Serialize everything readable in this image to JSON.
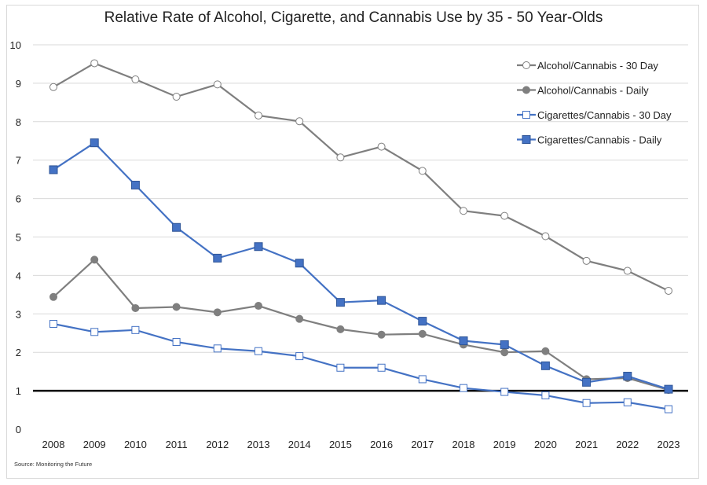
{
  "chart_data": {
    "type": "line",
    "title": "Relative Rate of Alcohol, Cigarette, and Cannabis Use by 35 - 50 Year-Olds",
    "source": "Source: Monitoring the Future",
    "x": [
      "2008",
      "2009",
      "2010",
      "2011",
      "2012",
      "2013",
      "2014",
      "2015",
      "2016",
      "2017",
      "2018",
      "2019",
      "2020",
      "2021",
      "2022",
      "2023"
    ],
    "ylim": [
      0,
      10
    ],
    "yticks": [
      "0",
      "1",
      "2",
      "3",
      "4",
      "5",
      "6",
      "7",
      "8",
      "9",
      "10"
    ],
    "grid": true,
    "legend_position": "top-right",
    "reference_line": 1,
    "series": [
      {
        "name": "Alcohol/Cannabis - 30 Day",
        "color": "#7f7f7f",
        "marker": "circle-open",
        "values": [
          8.9,
          9.52,
          9.1,
          8.65,
          8.97,
          8.16,
          8.01,
          7.07,
          7.35,
          6.72,
          5.68,
          5.55,
          5.02,
          4.38,
          4.12,
          3.6
        ]
      },
      {
        "name": "Alcohol/Cannabis - Daily",
        "color": "#7f7f7f",
        "marker": "circle-filled",
        "values": [
          3.44,
          4.41,
          3.15,
          3.18,
          3.04,
          3.21,
          2.87,
          2.6,
          2.46,
          2.48,
          2.2,
          2.0,
          2.03,
          1.3,
          1.33,
          1.02
        ]
      },
      {
        "name": "Cigarettes/Cannabis - 30 Day",
        "color": "#4472c4",
        "marker": "square-open",
        "values": [
          2.74,
          2.53,
          2.58,
          2.27,
          2.1,
          2.03,
          1.9,
          1.6,
          1.6,
          1.3,
          1.07,
          0.97,
          0.88,
          0.68,
          0.7,
          0.52
        ]
      },
      {
        "name": "Cigarettes/Cannabis - Daily",
        "color": "#4472c4",
        "marker": "square-filled",
        "values": [
          6.75,
          7.45,
          6.35,
          5.25,
          4.45,
          4.75,
          4.32,
          3.3,
          3.35,
          2.81,
          2.3,
          2.2,
          1.65,
          1.22,
          1.38,
          1.04
        ]
      }
    ]
  }
}
